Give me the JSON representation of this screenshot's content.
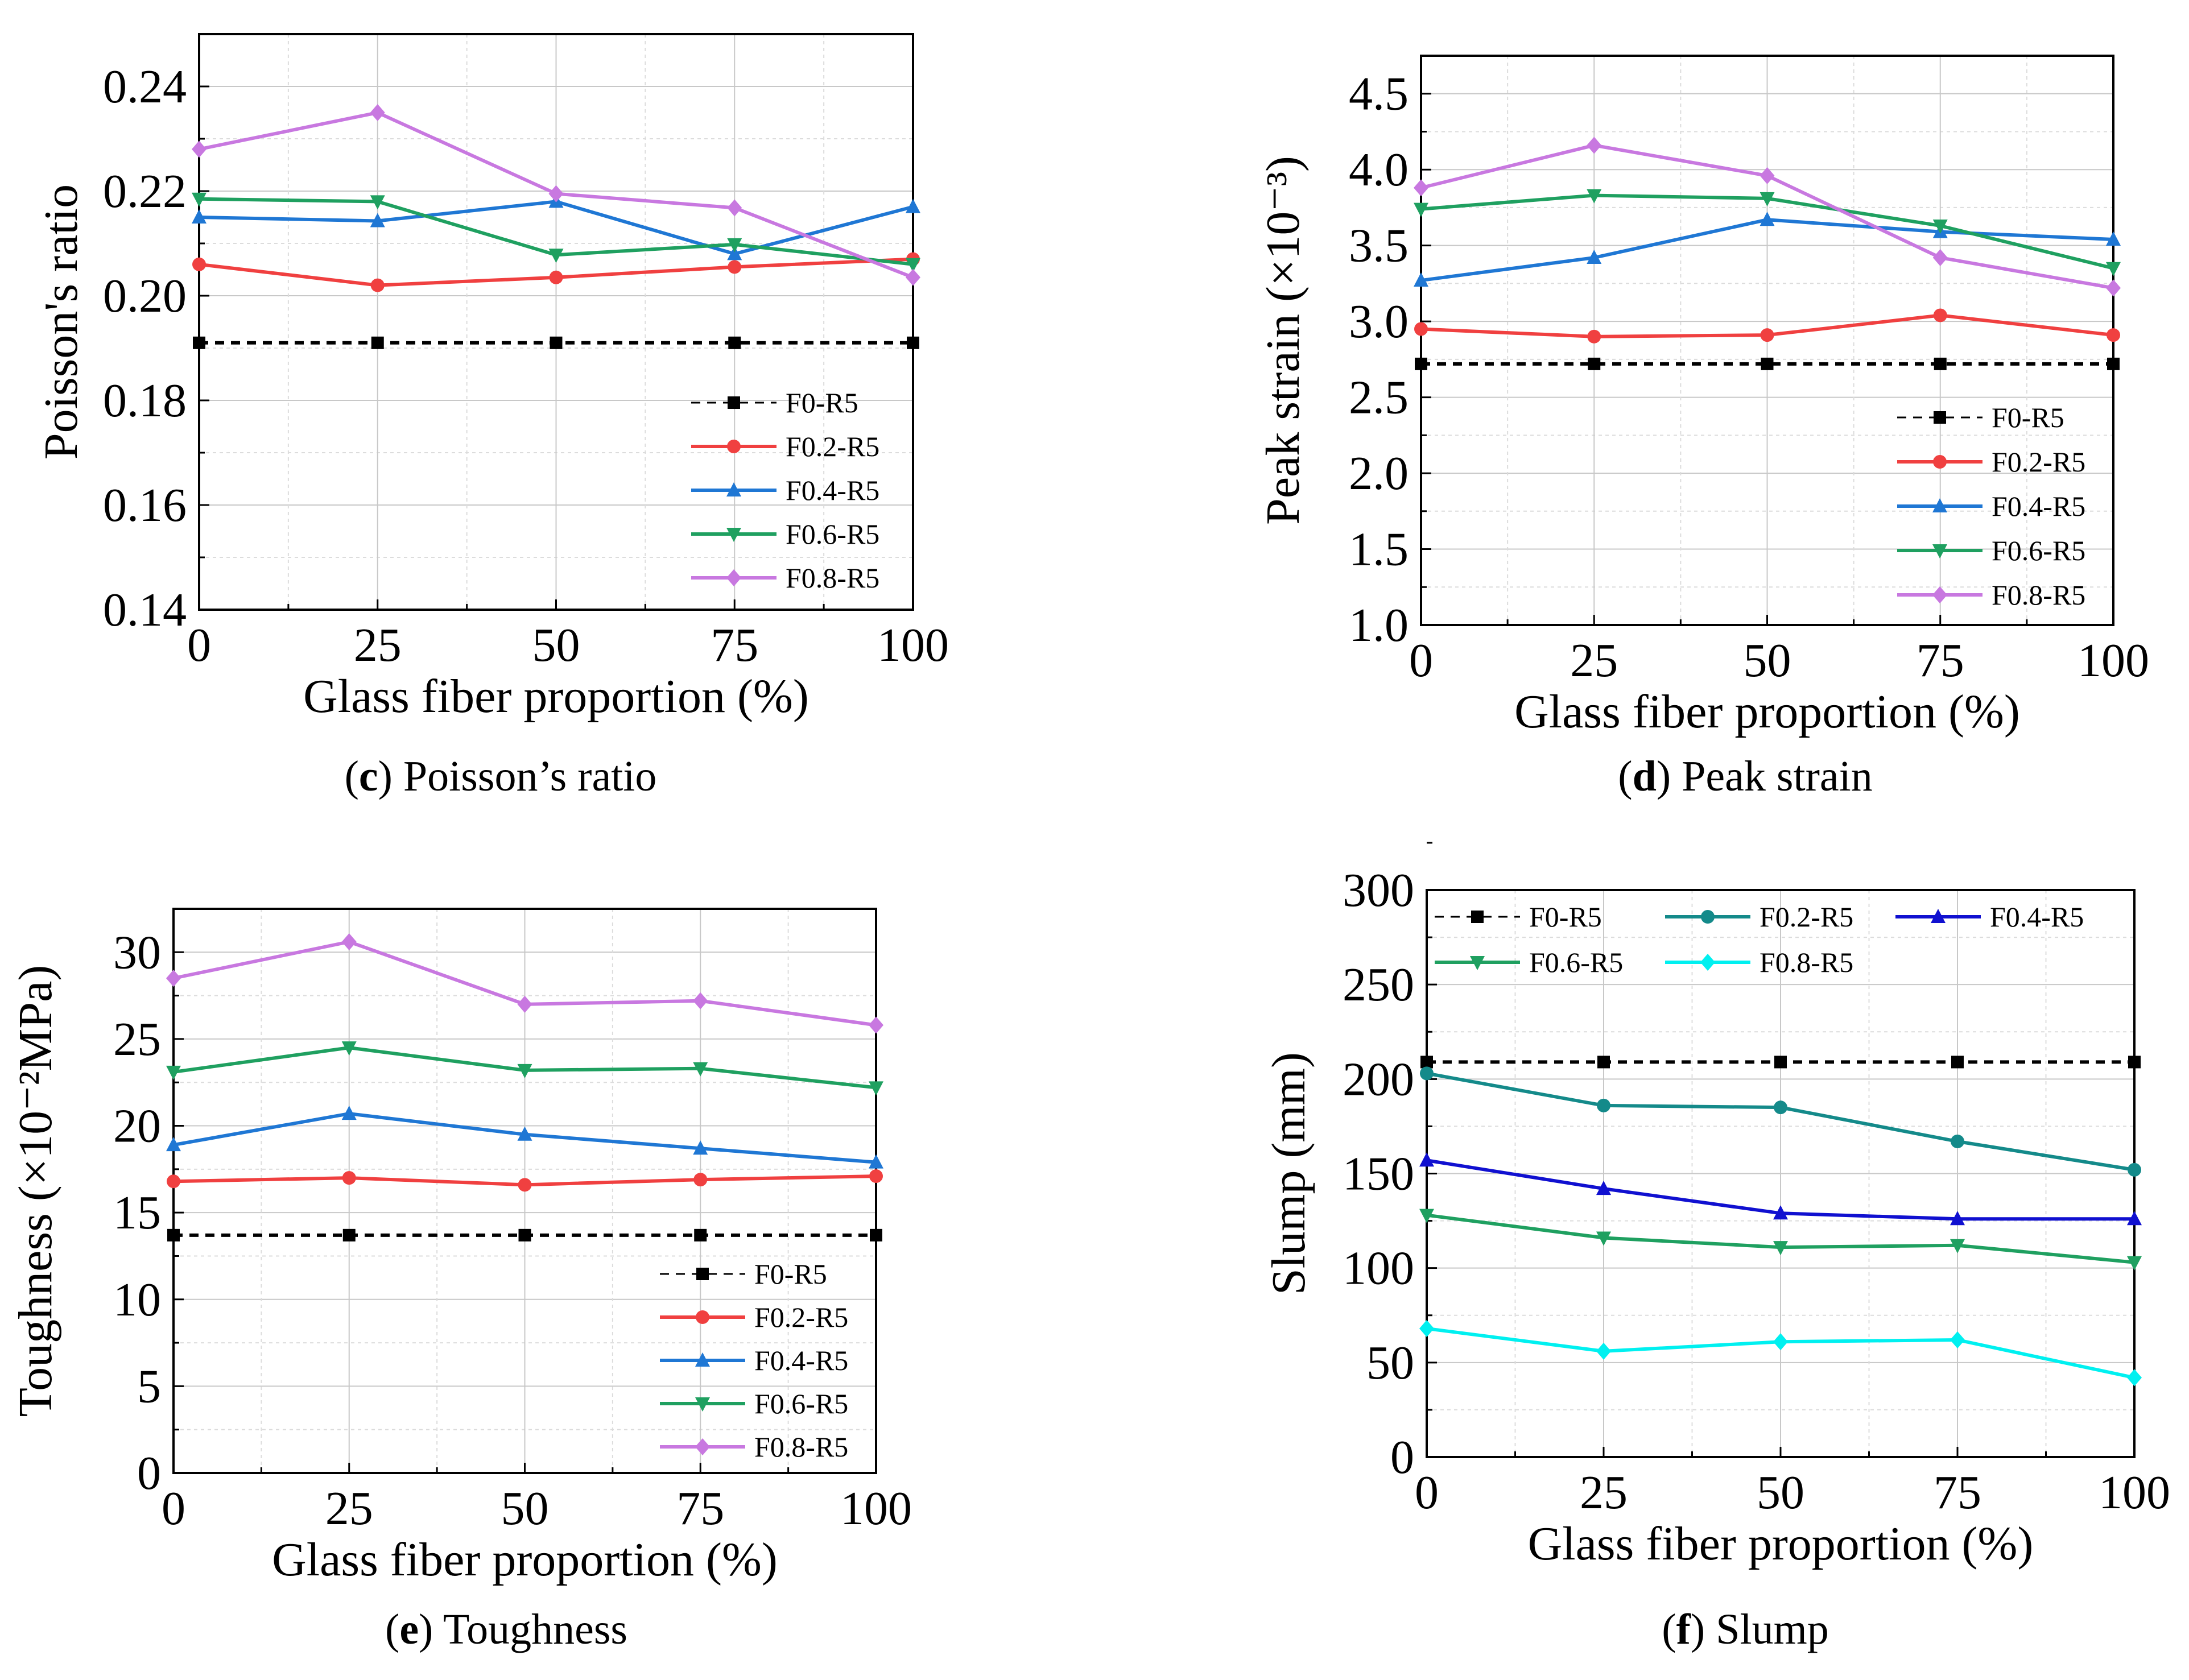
{
  "chart_data": [
    {
      "id": "c",
      "type": "line",
      "caption_letter": "c",
      "caption_text": "Poisson’s ratio",
      "xlabel": "Glass fiber proportion (%)",
      "ylabel": "Poisson's ratio",
      "xlim": [
        0,
        100
      ],
      "ylim": [
        0.14,
        0.25
      ],
      "xticks": [
        "0",
        "25",
        "50",
        "75",
        "100"
      ],
      "yticks": [
        "0.14",
        "0.16",
        "0.18",
        "0.20",
        "0.22",
        "0.24"
      ],
      "x": [
        0,
        25,
        50,
        75,
        100
      ],
      "legend_position": "bottom-right",
      "legend_columns": 1,
      "series": [
        {
          "name": "F0-R5",
          "color": "#000000",
          "marker": "square",
          "dashed": true,
          "values": [
            0.191,
            0.191,
            0.191,
            0.191,
            0.191
          ]
        },
        {
          "name": "F0.2-R5",
          "color": "#f04040",
          "marker": "circle",
          "dashed": false,
          "values": [
            0.206,
            0.202,
            0.2035,
            0.2055,
            0.207
          ]
        },
        {
          "name": "F0.4-R5",
          "color": "#1f77d4",
          "marker": "triangle-up",
          "dashed": false,
          "values": [
            0.215,
            0.2143,
            0.218,
            0.208,
            0.217
          ]
        },
        {
          "name": "F0.6-R5",
          "color": "#1fa060",
          "marker": "triangle-down",
          "dashed": false,
          "values": [
            0.2185,
            0.218,
            0.2078,
            0.2098,
            0.206
          ]
        },
        {
          "name": "F0.8-R5",
          "color": "#c878e0",
          "marker": "diamond",
          "dashed": false,
          "values": [
            0.228,
            0.235,
            0.2195,
            0.2168,
            0.2035
          ]
        }
      ]
    },
    {
      "id": "d",
      "type": "line",
      "caption_letter": "d",
      "caption_text": "Peak strain",
      "xlabel": "Glass fiber proportion (%)",
      "ylabel": "Peak strain (×10⁻³)",
      "xlim": [
        0,
        100
      ],
      "ylim": [
        1.0,
        4.75
      ],
      "xticks": [
        "0",
        "25",
        "50",
        "75",
        "100"
      ],
      "yticks": [
        "1.0",
        "1.5",
        "2.0",
        "2.5",
        "3.0",
        "3.5",
        "4.0",
        "4.5"
      ],
      "x": [
        0,
        25,
        50,
        75,
        100
      ],
      "legend_position": "bottom-right",
      "legend_columns": 1,
      "series": [
        {
          "name": "F0-R5",
          "color": "#000000",
          "marker": "square",
          "dashed": true,
          "values": [
            2.72,
            2.72,
            2.72,
            2.72,
            2.72
          ]
        },
        {
          "name": "F0.2-R5",
          "color": "#f04040",
          "marker": "circle",
          "dashed": false,
          "values": [
            2.95,
            2.9,
            2.91,
            3.04,
            2.91
          ]
        },
        {
          "name": "F0.4-R5",
          "color": "#1f77d4",
          "marker": "triangle-up",
          "dashed": false,
          "values": [
            3.27,
            3.42,
            3.67,
            3.59,
            3.54
          ]
        },
        {
          "name": "F0.6-R5",
          "color": "#1fa060",
          "marker": "triangle-down",
          "dashed": false,
          "values": [
            3.74,
            3.83,
            3.81,
            3.63,
            3.35
          ]
        },
        {
          "name": "F0.8-R5",
          "color": "#c878e0",
          "marker": "diamond",
          "dashed": false,
          "values": [
            3.88,
            4.16,
            3.96,
            3.42,
            3.22
          ]
        }
      ]
    },
    {
      "id": "e",
      "type": "line",
      "caption_letter": "e",
      "caption_text": "Toughness",
      "xlabel": "Glass fiber proportion (%)",
      "ylabel": "Toughness (×10⁻²MPa)",
      "xlim": [
        0,
        100
      ],
      "ylim": [
        0,
        32.5
      ],
      "xticks": [
        "0",
        "25",
        "50",
        "75",
        "100"
      ],
      "yticks": [
        "0",
        "5",
        "10",
        "15",
        "20",
        "25",
        "30"
      ],
      "x": [
        0,
        25,
        50,
        75,
        100
      ],
      "legend_position": "bottom-right",
      "legend_columns": 1,
      "series": [
        {
          "name": "F0-R5",
          "color": "#000000",
          "marker": "square",
          "dashed": true,
          "values": [
            13.7,
            13.7,
            13.7,
            13.7,
            13.7
          ]
        },
        {
          "name": "F0.2-R5",
          "color": "#f04040",
          "marker": "circle",
          "dashed": false,
          "values": [
            16.8,
            17.0,
            16.6,
            16.9,
            17.1
          ]
        },
        {
          "name": "F0.4-R5",
          "color": "#1f77d4",
          "marker": "triangle-up",
          "dashed": false,
          "values": [
            18.9,
            20.7,
            19.5,
            18.7,
            17.9
          ]
        },
        {
          "name": "F0.6-R5",
          "color": "#1fa060",
          "marker": "triangle-down",
          "dashed": false,
          "values": [
            23.1,
            24.5,
            23.2,
            23.3,
            22.2
          ]
        },
        {
          "name": "F0.8-R5",
          "color": "#c878e0",
          "marker": "diamond",
          "dashed": false,
          "values": [
            28.5,
            30.6,
            27.0,
            27.2,
            25.8
          ]
        }
      ]
    },
    {
      "id": "f",
      "type": "line",
      "caption_letter": "f",
      "caption_text": "Slump",
      "xlabel": "Glass fiber proportion (%)",
      "ylabel": "Slump (mm)",
      "xlim": [
        0,
        100
      ],
      "ylim": [
        0,
        300
      ],
      "xticks": [
        "0",
        "25",
        "50",
        "75",
        "100"
      ],
      "yticks": [
        "0",
        "50",
        "100",
        "150",
        "200",
        "250",
        "300"
      ],
      "x": [
        0,
        25,
        50,
        75,
        100
      ],
      "legend_position": "top",
      "legend_columns": 3,
      "series": [
        {
          "name": "F0-R5",
          "color": "#000000",
          "marker": "square",
          "dashed": true,
          "values": [
            209,
            209,
            209,
            209,
            209
          ]
        },
        {
          "name": "F0.2-R5",
          "color": "#148a8a",
          "marker": "circle",
          "dashed": false,
          "values": [
            203,
            186,
            185,
            167,
            152
          ]
        },
        {
          "name": "F0.4-R5",
          "color": "#1010d0",
          "marker": "triangle-up",
          "dashed": false,
          "values": [
            157,
            142,
            129,
            126,
            126
          ]
        },
        {
          "name": "F0.6-R5",
          "color": "#1fa060",
          "marker": "triangle-down",
          "dashed": false,
          "values": [
            128,
            116,
            111,
            112,
            103
          ]
        },
        {
          "name": "F0.8-R5",
          "color": "#00f0f0",
          "marker": "diamond",
          "dashed": false,
          "values": [
            68,
            56,
            61,
            62,
            42
          ]
        }
      ]
    }
  ]
}
